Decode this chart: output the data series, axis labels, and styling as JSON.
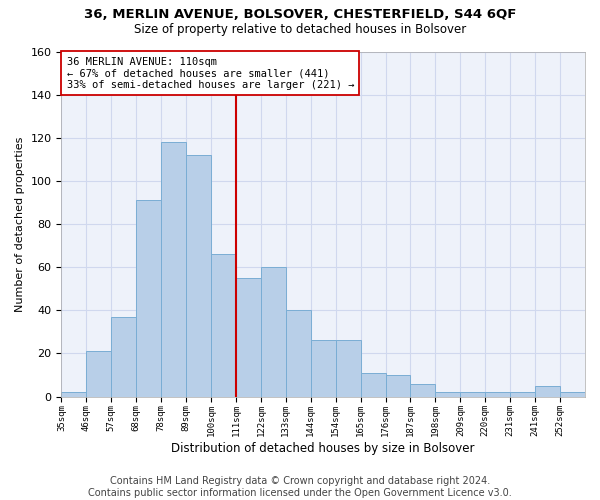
{
  "title": "36, MERLIN AVENUE, BOLSOVER, CHESTERFIELD, S44 6QF",
  "subtitle": "Size of property relative to detached houses in Bolsover",
  "xlabel": "Distribution of detached houses by size in Bolsover",
  "ylabel": "Number of detached properties",
  "bar_color": "#b8cfe8",
  "bar_edge_color": "#7aadd4",
  "vline_color": "#cc0000",
  "annotation_line1": "36 MERLIN AVENUE: 110sqm",
  "annotation_line2": "← 67% of detached houses are smaller (441)",
  "annotation_line3": "33% of semi-detached houses are larger (221) →",
  "categories": [
    "35sqm",
    "46sqm",
    "57sqm",
    "68sqm",
    "78sqm",
    "89sqm",
    "100sqm",
    "111sqm",
    "122sqm",
    "133sqm",
    "144sqm",
    "154sqm",
    "165sqm",
    "176sqm",
    "187sqm",
    "198sqm",
    "209sqm",
    "220sqm",
    "231sqm",
    "241sqm",
    "252sqm"
  ],
  "values": [
    2,
    21,
    37,
    91,
    118,
    112,
    66,
    55,
    60,
    40,
    26,
    26,
    11,
    10,
    6,
    2,
    2,
    2,
    2,
    5,
    2
  ],
  "ylim": [
    0,
    160
  ],
  "yticks": [
    0,
    20,
    40,
    60,
    80,
    100,
    120,
    140,
    160
  ],
  "grid_color": "#d0d8ee",
  "background_color": "#eef2fa",
  "footer_line1": "Contains HM Land Registry data © Crown copyright and database right 2024.",
  "footer_line2": "Contains public sector information licensed under the Open Government Licence v3.0.",
  "vline_bin_index": 7
}
